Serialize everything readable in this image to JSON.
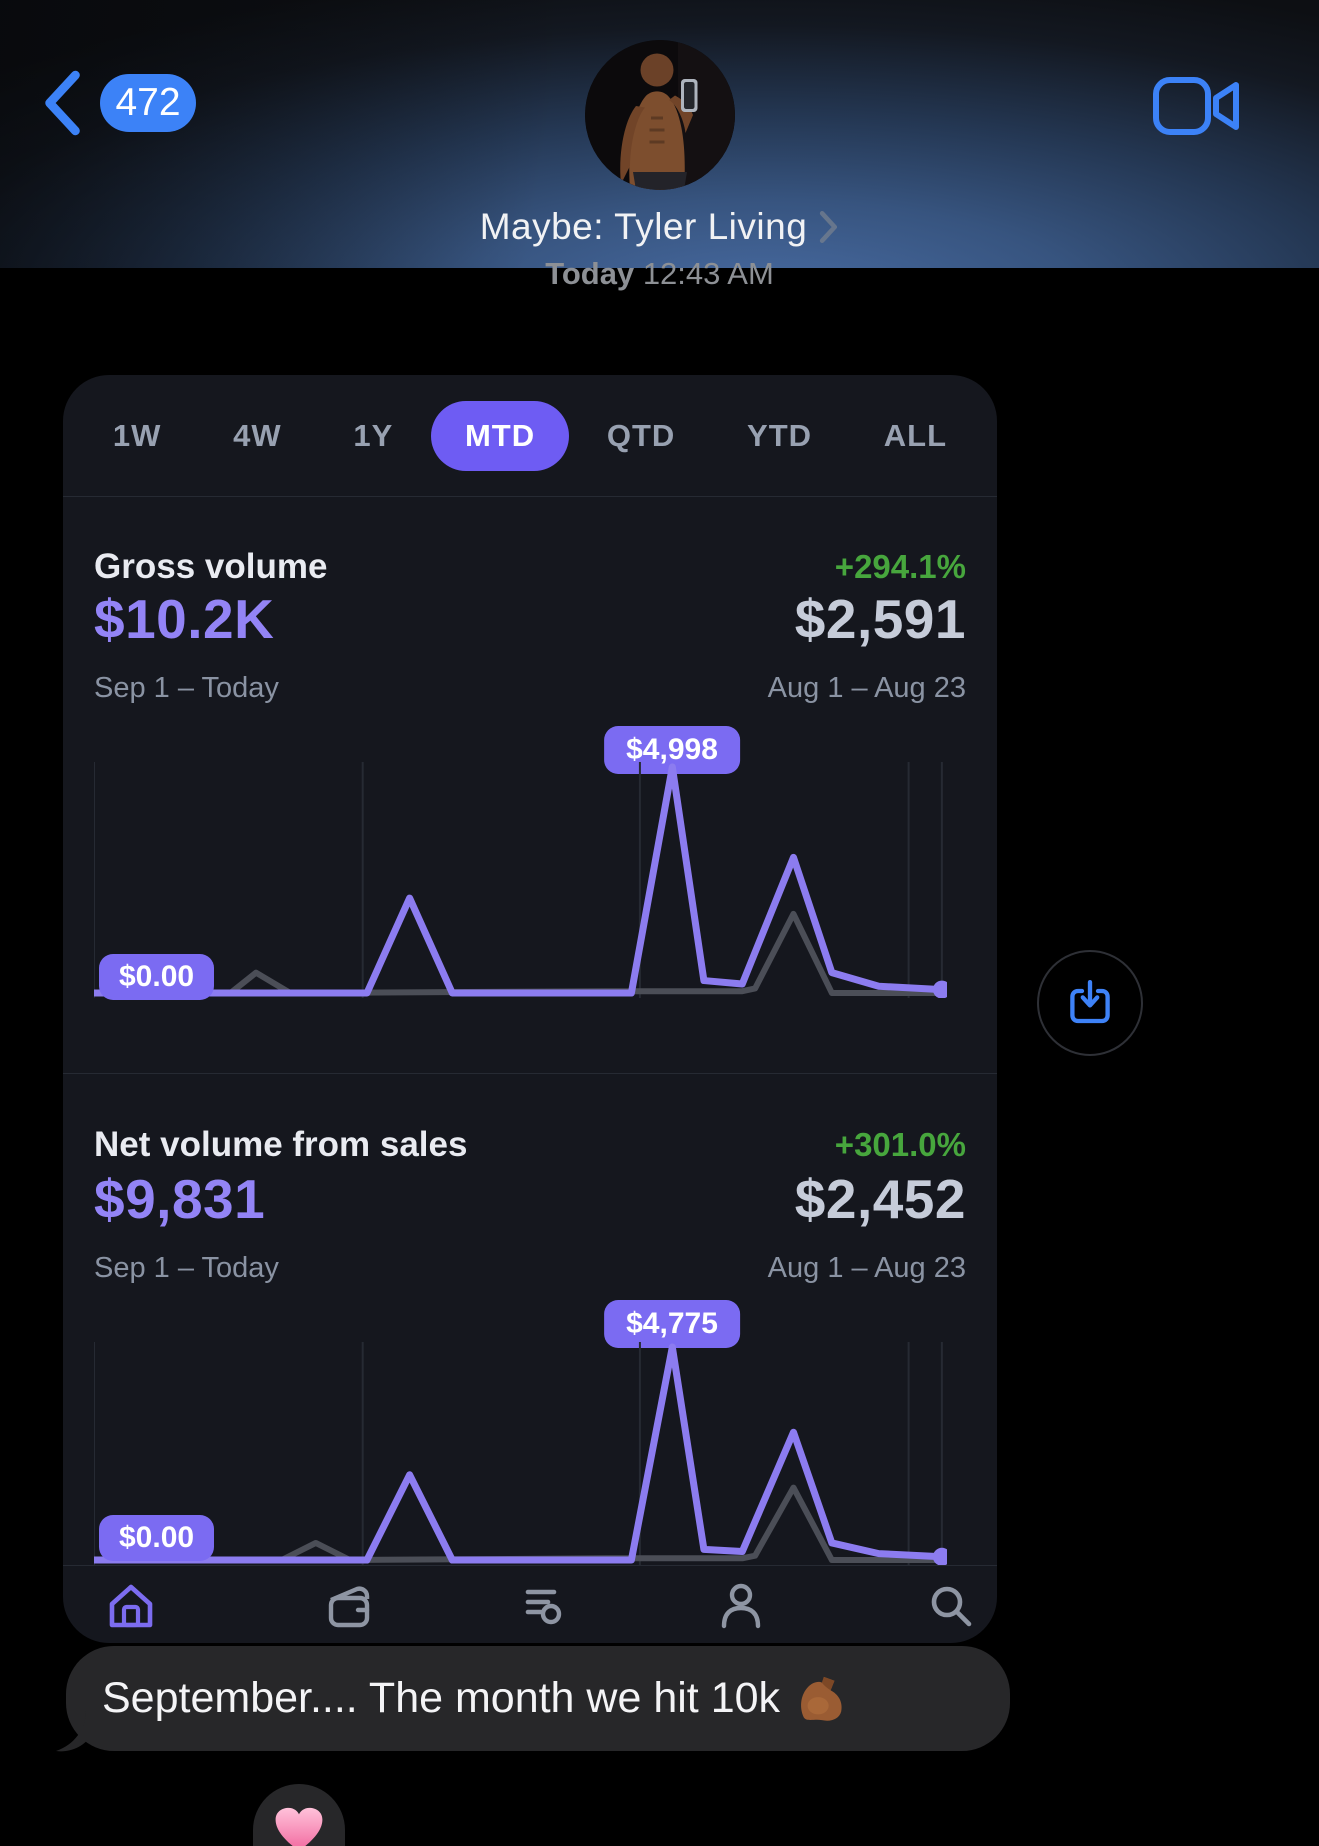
{
  "header": {
    "back_count": "472",
    "contact_name": "Maybe: Tyler Living"
  },
  "timestamp": {
    "day": "Today",
    "time": "12:43 AM"
  },
  "dashboard": {
    "tabs": [
      {
        "label": "1W",
        "active": false
      },
      {
        "label": "4W",
        "active": false
      },
      {
        "label": "1Y",
        "active": false
      },
      {
        "label": "MTD",
        "active": true
      },
      {
        "label": "QTD",
        "active": false
      },
      {
        "label": "YTD",
        "active": false
      },
      {
        "label": "ALL",
        "active": false
      }
    ],
    "sections": [
      {
        "title": "Gross volume",
        "change": "+294.1%",
        "current_value": "$10.2K",
        "previous_value": "$2,591",
        "current_range": "Sep 1 – Today",
        "previous_range": "Aug 1 – Aug 23",
        "peak_label": "$4,998",
        "min_label": "$0.00"
      },
      {
        "title": "Net volume from sales",
        "change": "+301.0%",
        "current_value": "$9,831",
        "previous_value": "$2,452",
        "current_range": "Sep 1 – Today",
        "previous_range": "Aug 1 – Aug 23",
        "peak_label": "$4,775",
        "min_label": "$0.00"
      }
    ],
    "nav_icons": [
      "home",
      "wallet",
      "transactions",
      "profile",
      "search"
    ]
  },
  "message": {
    "text": "September.... The month we hit 10k",
    "emoji": "flexed-biceps-medium-dark",
    "reaction": "pink-heart-tapback"
  },
  "colors": {
    "ios_blue": "#3c82f7",
    "accent_purple": "#7b6bf2",
    "line_purple": "#8c7cf0",
    "value_purple": "#9384f6",
    "green": "#47a63d",
    "card_bg": "#15171e",
    "bubble_bg": "#272729"
  },
  "chart_data": [
    {
      "type": "line",
      "title": "Gross volume (MTD, Sep 1 – Today vs Aug 1 – Aug 23)",
      "unit": "USD",
      "ymax_value": 4998,
      "peak": {
        "x_pct": 67.8,
        "value": 4998,
        "label": "$4,998"
      },
      "min_label_value": 0,
      "series": [
        {
          "name": "Sep 1 – Today",
          "color": "#8c7cf0",
          "points": [
            [
              0,
              0
            ],
            [
              27,
              0
            ],
            [
              30,
              0
            ],
            [
              32,
              0
            ],
            [
              37,
              42
            ],
            [
              42,
              0
            ],
            [
              63,
              0
            ],
            [
              67.8,
              100
            ],
            [
              71.5,
              5.5
            ],
            [
              76,
              4
            ],
            [
              82,
              60
            ],
            [
              86.5,
              9
            ],
            [
              92,
              3
            ],
            [
              99.4,
              1.5
            ]
          ]
        },
        {
          "name": "Aug 1 – Aug 23",
          "color": "#4b4e57",
          "points": [
            [
              0,
              0
            ],
            [
              16,
              0
            ],
            [
              19,
              9
            ],
            [
              23,
              0
            ],
            [
              60,
              0.8
            ],
            [
              76,
              0.8
            ],
            [
              77.5,
              2
            ],
            [
              82,
              35
            ],
            [
              86.5,
              0
            ],
            [
              99.4,
              0
            ]
          ]
        }
      ],
      "gridlines_x_pct": [
        0,
        31.5,
        64,
        95.5,
        99.4
      ],
      "endpoint_dot": true,
      "legend": "none",
      "grid": "vertical-only"
    },
    {
      "type": "line",
      "title": "Net volume from sales (MTD, Sep 1 – Today vs Aug 1 – Aug 23)",
      "unit": "USD",
      "ymax_value": 4775,
      "peak": {
        "x_pct": 67.8,
        "value": 4775,
        "label": "$4,775"
      },
      "min_label_value": 0,
      "series": [
        {
          "name": "Sep 1 – Today",
          "color": "#8c7cf0",
          "points": [
            [
              0,
              0
            ],
            [
              27,
              0
            ],
            [
              32,
              0
            ],
            [
              37,
              40
            ],
            [
              42,
              0
            ],
            [
              63,
              0
            ],
            [
              67.8,
              100
            ],
            [
              71.5,
              5
            ],
            [
              76,
              4
            ],
            [
              82,
              60
            ],
            [
              86.5,
              8
            ],
            [
              92,
              3
            ],
            [
              99.4,
              1.5
            ]
          ]
        },
        {
          "name": "Aug 1 – Aug 23",
          "color": "#4b4e57",
          "points": [
            [
              0,
              0
            ],
            [
              22,
              0
            ],
            [
              26,
              8
            ],
            [
              30,
              0
            ],
            [
              60,
              0.8
            ],
            [
              76,
              0.8
            ],
            [
              77.5,
              2
            ],
            [
              82,
              34
            ],
            [
              86.5,
              0
            ],
            [
              99.4,
              0
            ]
          ]
        }
      ],
      "gridlines_x_pct": [
        0,
        31.5,
        64,
        95.5,
        99.4
      ],
      "endpoint_dot": true,
      "legend": "none",
      "grid": "vertical-only"
    }
  ]
}
